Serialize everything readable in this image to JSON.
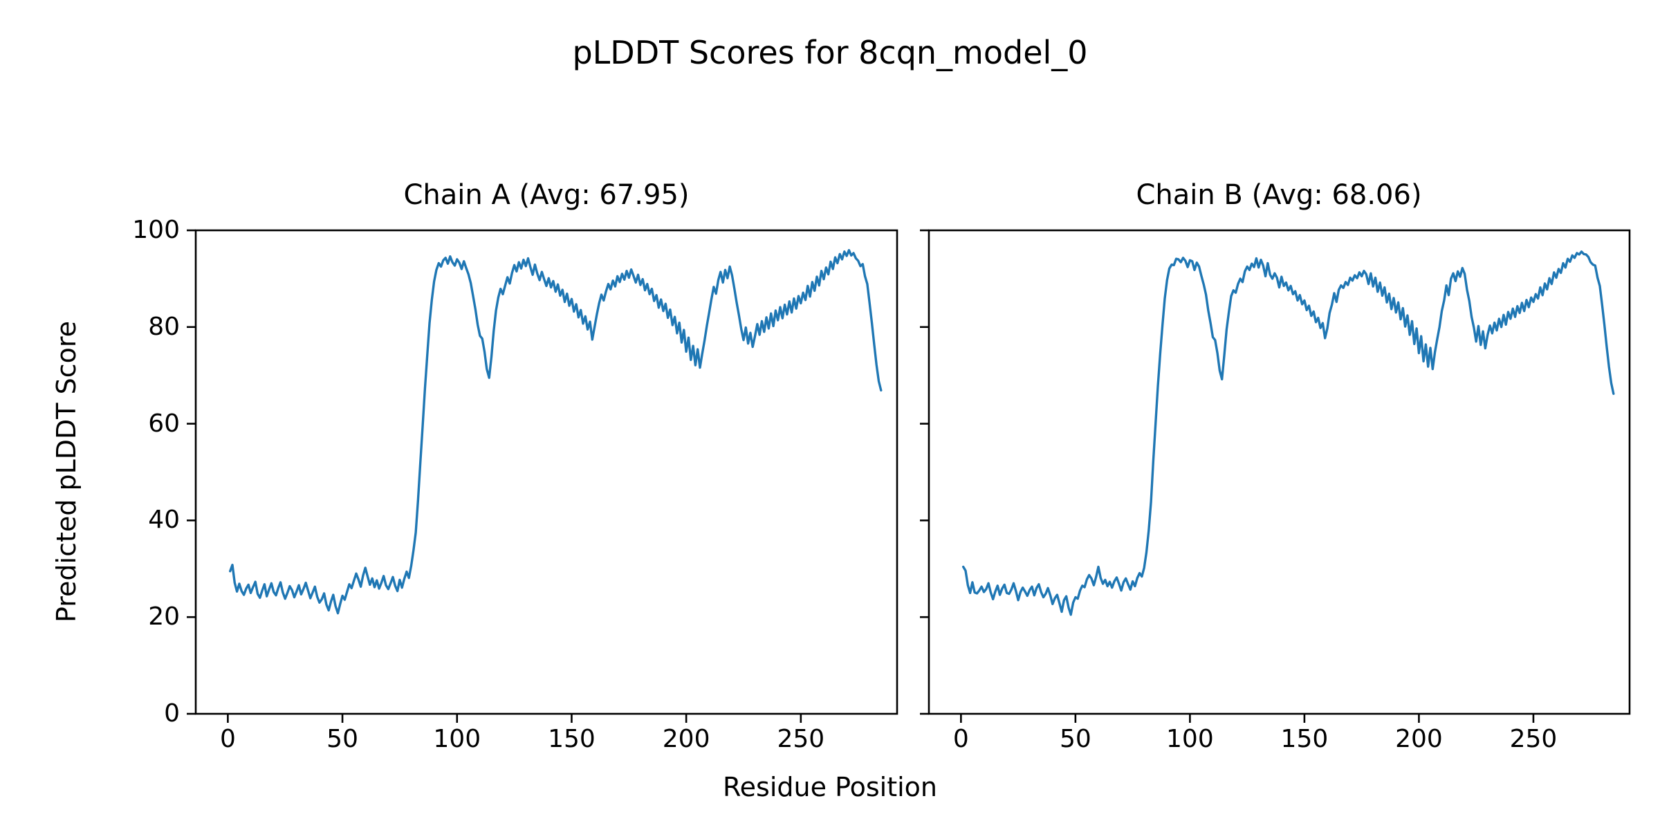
{
  "figure": {
    "title": "pLDDT Scores for 8cqn_model_0",
    "xlabel": "Residue Position",
    "ylabel": "Predicted pLDDT Score",
    "line_color": "#1f77b4",
    "axis_color": "#000000",
    "background": "#ffffff"
  },
  "chart_data": [
    {
      "type": "line",
      "title": "Chain A (Avg: 67.95)",
      "chain": "A",
      "avg": 67.95,
      "x_start": 1,
      "xlim": [
        -14,
        292
      ],
      "ylim": [
        0,
        100
      ],
      "xticks": [
        0,
        50,
        100,
        150,
        200,
        250
      ],
      "yticks": [
        0,
        20,
        40,
        60,
        80,
        100
      ],
      "show_ytick_labels": true,
      "xlabel": "Residue Position",
      "ylabel": "Predicted pLDDT Score",
      "values": [
        29.5,
        30.8,
        27.1,
        25.3,
        26.9,
        25.4,
        24.6,
        25.9,
        26.7,
        25.0,
        26.2,
        27.3,
        24.8,
        24.0,
        25.5,
        26.8,
        24.3,
        25.7,
        27.0,
        25.2,
        24.5,
        26.0,
        27.2,
        25.1,
        23.8,
        25.0,
        26.4,
        25.6,
        24.1,
        25.3,
        26.6,
        24.7,
        25.8,
        27.1,
        25.5,
        23.9,
        25.1,
        26.3,
        24.2,
        23.0,
        23.7,
        24.9,
        22.6,
        21.4,
        23.2,
        24.6,
        22.3,
        20.8,
        22.7,
        24.4,
        23.6,
        25.2,
        26.8,
        26.0,
        27.5,
        29.0,
        27.8,
        26.3,
        28.6,
        30.2,
        28.4,
        26.7,
        28.0,
        26.2,
        27.6,
        25.9,
        27.1,
        28.5,
        26.6,
        25.8,
        27.0,
        28.3,
        26.5,
        25.4,
        27.7,
        26.1,
        27.9,
        29.4,
        28.1,
        30.6,
        33.8,
        37.5,
        44.2,
        51.9,
        59.6,
        67.3,
        74.1,
        80.8,
        85.6,
        89.4,
        91.8,
        93.2,
        92.5,
        93.8,
        94.3,
        93.1,
        94.6,
        93.4,
        92.7,
        94.0,
        93.3,
        92.0,
        93.6,
        92.2,
        90.9,
        89.1,
        86.4,
        83.7,
        80.5,
        78.2,
        77.6,
        74.9,
        71.3,
        69.5,
        73.8,
        79.2,
        83.4,
        86.1,
        87.9,
        86.8,
        88.6,
        90.3,
        89.0,
        91.2,
        92.8,
        91.5,
        93.4,
        92.1,
        93.9,
        92.6,
        94.2,
        92.4,
        90.8,
        92.9,
        91.1,
        89.7,
        91.4,
        89.9,
        88.5,
        90.1,
        88.2,
        89.5,
        87.3,
        88.8,
        86.5,
        87.7,
        85.2,
        86.9,
        84.4,
        85.8,
        83.2,
        84.7,
        82.0,
        83.5,
        80.7,
        82.2,
        79.5,
        81.1,
        77.4,
        80.0,
        82.6,
        84.9,
        86.7,
        85.5,
        87.4,
        88.9,
        87.8,
        89.6,
        88.4,
        90.5,
        89.3,
        91.0,
        89.8,
        91.6,
        90.2,
        91.9,
        90.6,
        89.2,
        90.8,
        88.7,
        89.9,
        87.6,
        88.9,
        86.8,
        87.9,
        85.4,
        86.6,
        84.0,
        85.7,
        83.3,
        84.8,
        81.9,
        83.6,
        80.4,
        82.1,
        78.7,
        80.9,
        76.8,
        79.4,
        74.9,
        77.8,
        73.2,
        76.1,
        72.1,
        75.4,
        71.6,
        74.5,
        77.2,
        80.3,
        83.0,
        85.8,
        88.3,
        86.9,
        89.7,
        91.4,
        89.2,
        91.8,
        90.1,
        92.5,
        90.7,
        88.0,
        85.1,
        82.4,
        79.6,
        77.3,
        79.9,
        76.6,
        78.8,
        75.9,
        78.1,
        80.6,
        78.4,
        81.2,
        79.0,
        82.0,
        79.7,
        82.8,
        80.2,
        83.4,
        81.4,
        84.1,
        81.8,
        84.6,
        82.6,
        85.3,
        83.0,
        85.9,
        83.8,
        86.4,
        84.9,
        87.1,
        85.6,
        88.5,
        86.3,
        89.3,
        87.5,
        90.4,
        88.6,
        91.6,
        89.9,
        92.3,
        90.9,
        93.5,
        92.0,
        94.4,
        93.2,
        95.1,
        94.0,
        95.6,
        94.7,
        95.9,
        94.8,
        95.3,
        94.2,
        93.7,
        92.6,
        93.0,
        90.5,
        88.9,
        85.0,
        80.9,
        76.4,
        72.2,
        68.8,
        66.9
      ]
    },
    {
      "type": "line",
      "title": "Chain B (Avg: 68.06)",
      "chain": "B",
      "avg": 68.06,
      "x_start": 1,
      "xlim": [
        -14,
        292
      ],
      "ylim": [
        0,
        100
      ],
      "xticks": [
        0,
        50,
        100,
        150,
        200,
        250
      ],
      "yticks": [
        0,
        20,
        40,
        60,
        80,
        100
      ],
      "show_ytick_labels": false,
      "xlabel": "Residue Position",
      "ylabel": "Predicted pLDDT Score",
      "values": [
        30.4,
        29.6,
        26.6,
        25.0,
        27.2,
        25.1,
        24.9,
        25.5,
        26.3,
        25.2,
        25.8,
        27.0,
        25.1,
        23.7,
        25.3,
        26.5,
        24.6,
        25.9,
        26.7,
        25.0,
        24.8,
        25.7,
        27.0,
        25.4,
        23.5,
        25.2,
        26.1,
        25.3,
        24.4,
        25.6,
        26.3,
        24.5,
        26.0,
        26.8,
        25.2,
        24.1,
        24.8,
        26.0,
        24.5,
        22.7,
        23.9,
        24.6,
        22.9,
        21.1,
        23.5,
        24.3,
        22.0,
        20.5,
        23.0,
        24.1,
        23.8,
        25.5,
        26.5,
        26.2,
        27.8,
        28.7,
        28.0,
        26.6,
        28.3,
        30.4,
        28.1,
        26.9,
        27.7,
        26.4,
        27.3,
        26.1,
        27.4,
        28.2,
        26.9,
        25.5,
        27.2,
        28.0,
        26.8,
        25.7,
        27.4,
        26.4,
        28.1,
        29.1,
        28.4,
        30.2,
        33.4,
        37.9,
        43.8,
        52.3,
        60.0,
        67.7,
        74.5,
        80.4,
        85.9,
        89.7,
        92.1,
        92.9,
        92.8,
        94.1,
        94.0,
        93.4,
        94.3,
        93.7,
        92.4,
        93.8,
        93.6,
        91.8,
        93.3,
        92.5,
        90.6,
        88.8,
        86.7,
        83.4,
        80.8,
        77.9,
        77.3,
        74.6,
        71.0,
        69.2,
        74.1,
        79.5,
        83.1,
        86.4,
        87.6,
        87.1,
        88.9,
        90.0,
        89.3,
        91.5,
        92.5,
        91.8,
        93.1,
        92.4,
        94.2,
        92.3,
        93.9,
        92.7,
        90.5,
        93.2,
        90.8,
        90.0,
        91.1,
        90.2,
        88.2,
        90.4,
        88.5,
        89.2,
        87.6,
        88.5,
        86.8,
        87.4,
        85.5,
        86.6,
        84.7,
        85.5,
        83.5,
        84.4,
        82.3,
        83.2,
        81.0,
        81.9,
        79.8,
        80.8,
        77.7,
        79.7,
        82.9,
        84.6,
        87.0,
        85.2,
        87.7,
        88.6,
        88.1,
        89.3,
        88.7,
        90.2,
        89.6,
        90.7,
        90.1,
        91.3,
        90.5,
        91.6,
        90.9,
        88.9,
        91.1,
        88.4,
        90.2,
        87.3,
        89.2,
        86.5,
        88.2,
        85.1,
        86.9,
        83.7,
        86.0,
        83.0,
        85.1,
        81.6,
        83.9,
        80.1,
        82.4,
        78.4,
        81.2,
        76.5,
        79.7,
        74.6,
        78.1,
        72.9,
        76.4,
        71.8,
        75.7,
        71.3,
        74.8,
        77.5,
        80.0,
        83.3,
        85.5,
        88.6,
        86.6,
        90.0,
        91.1,
        89.5,
        91.5,
        90.4,
        92.2,
        91.0,
        87.7,
        85.4,
        82.1,
        79.9,
        77.0,
        80.2,
        76.3,
        79.1,
        75.6,
        78.4,
        80.3,
        78.7,
        80.9,
        79.3,
        81.7,
        80.0,
        82.5,
        80.5,
        83.1,
        81.7,
        83.8,
        82.1,
        84.3,
        82.9,
        85.0,
        83.3,
        85.6,
        84.1,
        86.1,
        85.2,
        86.8,
        85.9,
        88.2,
        86.6,
        89.0,
        87.8,
        90.1,
        88.9,
        91.3,
        90.2,
        92.0,
        91.2,
        93.2,
        92.3,
        94.1,
        93.5,
        94.8,
        94.3,
        95.3,
        95.0,
        95.6,
        95.1,
        95.0,
        94.5,
        93.4,
        92.9,
        92.7,
        90.2,
        88.5,
        84.6,
        80.5,
        76.0,
        71.8,
        68.4,
        66.2
      ]
    }
  ]
}
